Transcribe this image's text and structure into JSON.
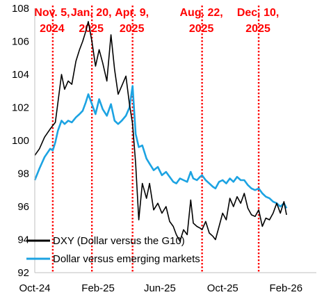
{
  "chart_data": {
    "type": "line",
    "xlim": [
      "2024-10-01",
      "2026-04-01"
    ],
    "ylim": [
      92,
      108
    ],
    "y_ticks": [
      "92",
      "94",
      "96",
      "98",
      "100",
      "102",
      "104",
      "106",
      "108"
    ],
    "x_ticks": [
      {
        "label": "Oct-24",
        "date": "2024-10-01"
      },
      {
        "label": "Feb-25",
        "date": "2025-02-01"
      },
      {
        "label": "Jun-25",
        "date": "2025-06-01"
      },
      {
        "label": "Oct-25",
        "date": "2025-10-01"
      },
      {
        "label": "Feb-26",
        "date": "2026-02-01"
      }
    ],
    "grid": false,
    "legend_position": "bottom-left",
    "events": [
      {
        "date": "2024-11-05",
        "line1": "Nov. 5,",
        "line2": "2024"
      },
      {
        "date": "2025-01-20",
        "line1": "Jan. 20,",
        "line2": "2025"
      },
      {
        "date": "2025-04-09",
        "line1": "Apr. 9,",
        "line2": "2025"
      },
      {
        "date": "2025-08-22",
        "line1": "Aug. 22,",
        "line2": "2025"
      },
      {
        "date": "2025-12-10",
        "line1": "Dec. 10,",
        "line2": "2025"
      }
    ],
    "event_color": "#ff0000",
    "series": [
      {
        "name": "DXY (Dollar versus the G10)",
        "color": "#000000",
        "points": [
          [
            "2024-10-01",
            99.1
          ],
          [
            "2024-10-10",
            99.5
          ],
          [
            "2024-10-20",
            100.2
          ],
          [
            "2024-10-31",
            100.7
          ],
          [
            "2024-11-05",
            100.9
          ],
          [
            "2024-11-10",
            101.1
          ],
          [
            "2024-11-15",
            102.3
          ],
          [
            "2024-11-22",
            104.0
          ],
          [
            "2024-11-28",
            103.1
          ],
          [
            "2024-12-05",
            103.6
          ],
          [
            "2024-12-12",
            103.4
          ],
          [
            "2024-12-20",
            104.8
          ],
          [
            "2024-12-27",
            105.5
          ],
          [
            "2025-01-02",
            106.0
          ],
          [
            "2025-01-08",
            106.6
          ],
          [
            "2025-01-13",
            107.2
          ],
          [
            "2025-01-20",
            106.0
          ],
          [
            "2025-01-27",
            104.5
          ],
          [
            "2025-02-03",
            105.5
          ],
          [
            "2025-02-10",
            104.7
          ],
          [
            "2025-02-18",
            103.6
          ],
          [
            "2025-02-26",
            106.4
          ],
          [
            "2025-03-05",
            104.3
          ],
          [
            "2025-03-12",
            102.8
          ],
          [
            "2025-03-19",
            103.3
          ],
          [
            "2025-03-27",
            103.9
          ],
          [
            "2025-04-03",
            102.2
          ],
          [
            "2025-04-09",
            101.0
          ],
          [
            "2025-04-15",
            98.6
          ],
          [
            "2025-04-21",
            95.2
          ],
          [
            "2025-04-28",
            97.4
          ],
          [
            "2025-05-06",
            96.5
          ],
          [
            "2025-05-12",
            97.4
          ],
          [
            "2025-05-20",
            95.8
          ],
          [
            "2025-05-28",
            96.2
          ],
          [
            "2025-06-05",
            95.6
          ],
          [
            "2025-06-13",
            96.0
          ],
          [
            "2025-06-20",
            95.1
          ],
          [
            "2025-06-27",
            94.8
          ],
          [
            "2025-07-03",
            94.3
          ],
          [
            "2025-07-10",
            93.9
          ],
          [
            "2025-07-17",
            94.6
          ],
          [
            "2025-07-24",
            94.3
          ],
          [
            "2025-07-31",
            96.4
          ],
          [
            "2025-08-05",
            95.0
          ],
          [
            "2025-08-12",
            94.8
          ],
          [
            "2025-08-18",
            94.7
          ],
          [
            "2025-08-22",
            94.6
          ],
          [
            "2025-08-29",
            95.1
          ],
          [
            "2025-09-05",
            94.4
          ],
          [
            "2025-09-12",
            94.2
          ],
          [
            "2025-09-17",
            94.0
          ],
          [
            "2025-09-24",
            94.8
          ],
          [
            "2025-10-01",
            95.6
          ],
          [
            "2025-10-08",
            95.2
          ],
          [
            "2025-10-15",
            96.5
          ],
          [
            "2025-10-22",
            96.0
          ],
          [
            "2025-10-29",
            96.6
          ],
          [
            "2025-11-05",
            96.2
          ],
          [
            "2025-11-12",
            96.8
          ],
          [
            "2025-11-19",
            95.9
          ],
          [
            "2025-11-26",
            95.5
          ],
          [
            "2025-12-03",
            95.4
          ],
          [
            "2025-12-10",
            95.8
          ],
          [
            "2025-12-17",
            94.8
          ],
          [
            "2025-12-24",
            95.3
          ],
          [
            "2025-12-31",
            95.2
          ],
          [
            "2026-01-07",
            95.6
          ],
          [
            "2026-01-14",
            96.2
          ],
          [
            "2026-01-21",
            95.6
          ],
          [
            "2026-01-28",
            96.3
          ],
          [
            "2026-02-02",
            95.5
          ]
        ]
      },
      {
        "name": "Dollar versus emerging markets",
        "color": "#1ca3e2",
        "points": [
          [
            "2024-10-01",
            97.6
          ],
          [
            "2024-10-10",
            98.3
          ],
          [
            "2024-10-20",
            99.0
          ],
          [
            "2024-10-31",
            99.5
          ],
          [
            "2024-11-05",
            99.4
          ],
          [
            "2024-11-10",
            99.9
          ],
          [
            "2024-11-15",
            100.6
          ],
          [
            "2024-11-22",
            101.2
          ],
          [
            "2024-11-28",
            101.0
          ],
          [
            "2024-12-05",
            101.2
          ],
          [
            "2024-12-12",
            101.1
          ],
          [
            "2024-12-20",
            101.4
          ],
          [
            "2024-12-27",
            101.6
          ],
          [
            "2025-01-02",
            101.8
          ],
          [
            "2025-01-08",
            102.3
          ],
          [
            "2025-01-13",
            102.8
          ],
          [
            "2025-01-20",
            102.2
          ],
          [
            "2025-01-27",
            101.6
          ],
          [
            "2025-02-03",
            102.5
          ],
          [
            "2025-02-10",
            101.9
          ],
          [
            "2025-02-18",
            101.5
          ],
          [
            "2025-02-26",
            102.2
          ],
          [
            "2025-03-05",
            101.2
          ],
          [
            "2025-03-12",
            101.0
          ],
          [
            "2025-03-19",
            101.2
          ],
          [
            "2025-03-27",
            101.5
          ],
          [
            "2025-04-03",
            102.0
          ],
          [
            "2025-04-09",
            103.3
          ],
          [
            "2025-04-15",
            100.4
          ],
          [
            "2025-04-21",
            99.6
          ],
          [
            "2025-04-28",
            99.7
          ],
          [
            "2025-05-06",
            98.9
          ],
          [
            "2025-05-12",
            98.6
          ],
          [
            "2025-05-20",
            98.2
          ],
          [
            "2025-05-28",
            98.4
          ],
          [
            "2025-06-05",
            97.9
          ],
          [
            "2025-06-13",
            98.1
          ],
          [
            "2025-06-20",
            97.8
          ],
          [
            "2025-06-27",
            97.5
          ],
          [
            "2025-07-03",
            97.4
          ],
          [
            "2025-07-10",
            97.7
          ],
          [
            "2025-07-17",
            97.6
          ],
          [
            "2025-07-24",
            97.5
          ],
          [
            "2025-07-31",
            98.1
          ],
          [
            "2025-08-05",
            97.7
          ],
          [
            "2025-08-12",
            97.6
          ],
          [
            "2025-08-18",
            97.8
          ],
          [
            "2025-08-22",
            97.9
          ],
          [
            "2025-08-29",
            97.6
          ],
          [
            "2025-09-05",
            97.4
          ],
          [
            "2025-09-12",
            97.2
          ],
          [
            "2025-09-17",
            97.1
          ],
          [
            "2025-09-24",
            97.5
          ],
          [
            "2025-10-01",
            97.6
          ],
          [
            "2025-10-08",
            97.4
          ],
          [
            "2025-10-15",
            97.7
          ],
          [
            "2025-10-22",
            97.5
          ],
          [
            "2025-10-29",
            97.8
          ],
          [
            "2025-11-05",
            97.6
          ],
          [
            "2025-11-12",
            97.6
          ],
          [
            "2025-11-19",
            97.3
          ],
          [
            "2025-11-26",
            97.1
          ],
          [
            "2025-12-03",
            97.0
          ],
          [
            "2025-12-10",
            97.1
          ],
          [
            "2025-12-17",
            96.8
          ],
          [
            "2025-12-24",
            96.6
          ],
          [
            "2025-12-31",
            96.5
          ],
          [
            "2026-01-07",
            96.3
          ],
          [
            "2026-01-14",
            96.2
          ],
          [
            "2026-01-21",
            96.0
          ],
          [
            "2026-01-28",
            96.2
          ],
          [
            "2026-02-02",
            95.9
          ]
        ]
      }
    ]
  }
}
